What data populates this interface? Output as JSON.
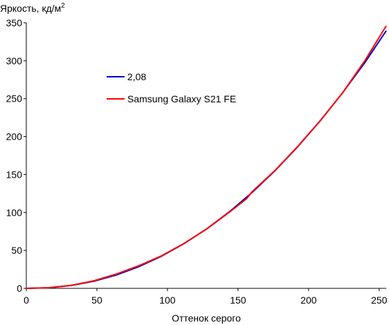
{
  "chart_data": {
    "type": "line",
    "ylabel": "Яркость, кд/м",
    "ylabel_sup": "2",
    "xlabel": "Оттенок серого",
    "xlim": [
      0,
      255
    ],
    "ylim": [
      0,
      350
    ],
    "xticks": [
      0,
      50,
      100,
      150,
      200,
      250
    ],
    "yticks": [
      0,
      50,
      100,
      150,
      200,
      250,
      300,
      350
    ],
    "grid": false,
    "legend_position": "upper-left",
    "series": [
      {
        "name": "2,08",
        "color": "#0000c8",
        "x": [
          0,
          16,
          32,
          48,
          64,
          80,
          96,
          112,
          128,
          144,
          160,
          176,
          192,
          208,
          224,
          240,
          255
        ],
        "y": [
          0,
          0.8,
          3.8,
          9.5,
          17.8,
          28.8,
          42.6,
          59.2,
          78.7,
          101.1,
          126.4,
          154.7,
          186.0,
          220.3,
          257.6,
          298.0,
          339.6
        ]
      },
      {
        "name": "Samsung Galaxy S21 FE",
        "color": "#ff0000",
        "x": [
          0,
          16,
          32,
          48,
          64,
          80,
          96,
          112,
          128,
          144,
          156,
          160,
          176,
          192,
          208,
          224,
          240,
          255
        ],
        "y": [
          0,
          0.8,
          4.0,
          10.0,
          19.0,
          30.0,
          43.0,
          59.5,
          78.5,
          100.5,
          118.0,
          127.5,
          155.0,
          186.5,
          220.5,
          257.5,
          300.5,
          346.0
        ]
      }
    ]
  }
}
